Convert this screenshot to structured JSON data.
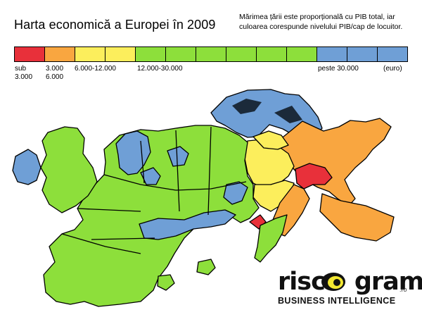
{
  "title": "Harta economică a Europei în 2009",
  "note": "Mărimea țării este proporțională cu PIB total, iar culoarea corespunde nivelului PIB/cap de locuitor.",
  "legend": {
    "colors": [
      "#e8303a",
      "#f9a640",
      "#fcee5c",
      "#fcee5c",
      "#8ddf3b",
      "#8ddf3b",
      "#8ddf3b",
      "#8ddf3b",
      "#8ddf3b",
      "#8ddf3b",
      "#6f9fd6",
      "#6f9fd6",
      "#6f9fd6"
    ],
    "labels": [
      {
        "line1": "sub",
        "line2": "3.000"
      },
      {
        "line1": "3.000",
        "line2": "6.000"
      },
      {
        "line1": "6.000-12.000",
        "line2": ""
      },
      {
        "line1": "12.000-30.000",
        "line2": ""
      },
      {
        "line1": "peste 30.000",
        "line2": ""
      },
      {
        "line1": "(euro)",
        "line2": ""
      }
    ]
  },
  "map_colors": {
    "green": "#8ddf3b",
    "blue": "#6f9fd6",
    "yellow": "#fcee5c",
    "orange": "#f9a640",
    "red": "#e8303a"
  },
  "logo": {
    "word_left": "risc",
    "word_right": "grama",
    "suffix": ".ro",
    "tagline": "BUSINESS INTELLIGENCE"
  }
}
